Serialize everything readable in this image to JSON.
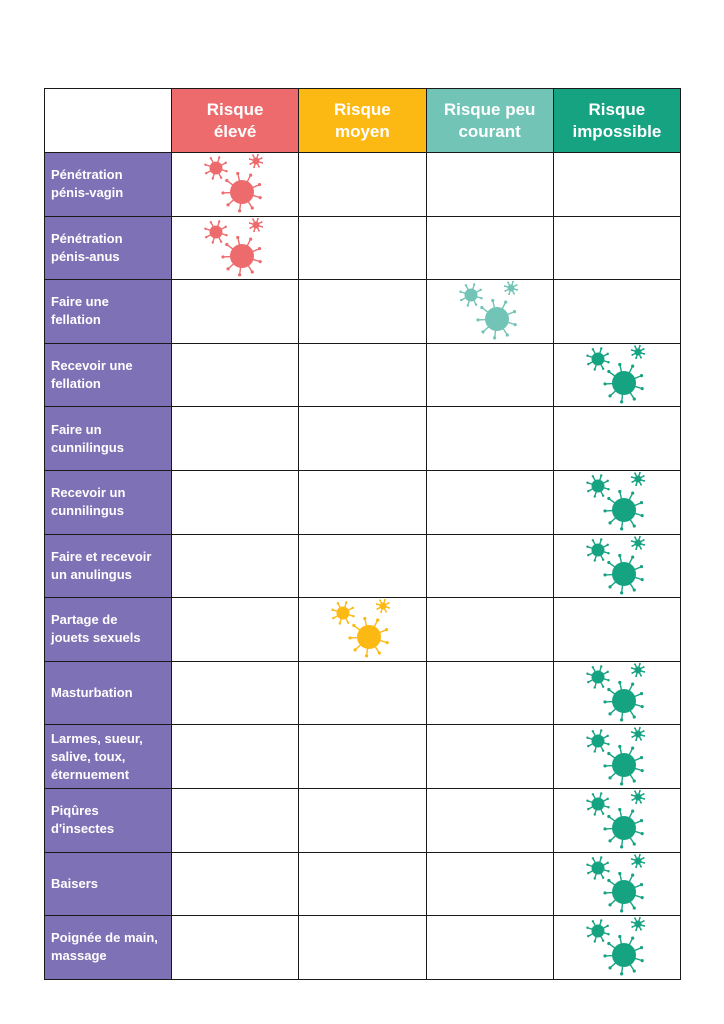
{
  "columns": [
    {
      "key": "eleve",
      "label": "Risque\nélevé",
      "color": "#ee6b6d"
    },
    {
      "key": "moyen",
      "label": "Risque\nmoyen",
      "color": "#fdb913"
    },
    {
      "key": "peu",
      "label": "Risque peu\ncourant",
      "color": "#72c4b7"
    },
    {
      "key": "impossible",
      "label": "Risque\nimpossible",
      "color": "#16a382"
    }
  ],
  "rows": [
    {
      "label": "Pénétration\npénis-vagin",
      "risk": "eleve"
    },
    {
      "label": "Pénétration\npénis-anus",
      "risk": "eleve"
    },
    {
      "label": "Faire une\nfellation",
      "risk": "peu"
    },
    {
      "label": "Recevoir une\nfellation",
      "risk": "impossible"
    },
    {
      "label": "Faire un\ncunnilingus",
      "risk": ""
    },
    {
      "label": "Recevoir un\ncunnilingus",
      "risk": "impossible"
    },
    {
      "label": "Faire et recevoir\nun anulingus",
      "risk": "impossible"
    },
    {
      "label": "Partage de\n jouets sexuels",
      "risk": "moyen"
    },
    {
      "label": "Masturbation",
      "risk": "impossible"
    },
    {
      "label": "Larmes, sueur,\nsalive, toux,\néternuement",
      "risk": "impossible"
    },
    {
      "label": "Piqûres\nd'insectes",
      "risk": "impossible"
    },
    {
      "label": "Baisers",
      "risk": "impossible"
    },
    {
      "label": "Poignée de main,\nmassage",
      "risk": "impossible"
    }
  ],
  "icon": "virus-icon"
}
